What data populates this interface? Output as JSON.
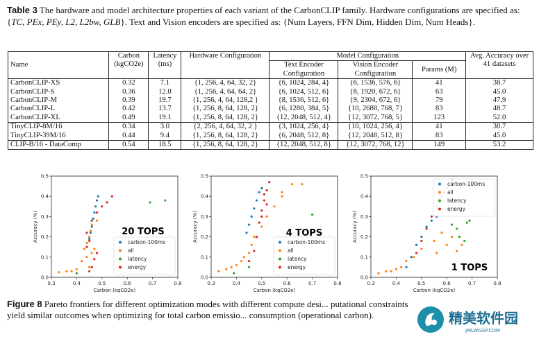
{
  "table_caption": {
    "label": "Table 3",
    "text_a": "The hardware and model architecture properties of each variant of the CarbonCLIP family. Hardware configurations are specified as: {",
    "math": "TC, PEx, PEy, L2, L2bw, GLB",
    "text_b": "}. Text and Vision encoders are specified as: {Num Layers, FFN Dim, Hidden Dim, Num Heads}."
  },
  "table": {
    "headers": {
      "name": "Name",
      "carbon": "Carbon (kgCO2e)",
      "latency": "Latency (ms)",
      "hardware": "Hardware Configuration",
      "model_config": "Model Configuration",
      "text_encoder": "Text Encoder Configuration",
      "vision_encoder": "Vision Encoder Configuration",
      "params": "Params (M)",
      "accuracy": "Avg. Accuracy over 41 datasets"
    },
    "rows": [
      {
        "name": "CarbonCLIP-XS",
        "carbon": "0.32",
        "latency": "7.1",
        "hw": "{1, 256, 4, 64, 32, 2}",
        "text": "{6, 1024, 284, 4}",
        "vision": "{6, 1536, 576, 6}",
        "params": "41",
        "acc": "38.7"
      },
      {
        "name": "CarbonCLIP-S",
        "carbon": "0.36",
        "latency": "12.0",
        "hw": "{1, 256, 4, 64, 64, 2}",
        "text": "{6, 1024, 512, 6}",
        "vision": "{8, 1920, 672, 6}",
        "params": "63",
        "acc": "45.0"
      },
      {
        "name": "CarbonCLIP-M",
        "carbon": "0.39",
        "latency": "19.7",
        "hw": "{1, 256, 4, 64, 128,2 }",
        "text": "{8, 1536, 512, 6}",
        "vision": "{9, 2304, 672, 6}",
        "params": "79",
        "acc": "47.9"
      },
      {
        "name": "CarbonCLIP-L",
        "carbon": "0.42",
        "latency": "13.7",
        "hw": "{1, 256, 8, 64, 128, 2}",
        "text": "{6, 1280, 384, 5}",
        "vision": "{10, 2688, 768, 7}",
        "params": "83",
        "acc": "48.7"
      },
      {
        "name": "CarbonCLIP-XL",
        "carbon": "0.49",
        "latency": "19.1",
        "hw": "{1, 256, 8, 64, 128, 2}",
        "text": "{12, 2048, 512, 4}",
        "vision": "{12, 3072, 768, 5}",
        "params": "123",
        "acc": "52.0"
      },
      {
        "name": "TinyCLIP-8M/16",
        "carbon": "0.34",
        "latency": "3.0",
        "hw": "{2, 256, 4, 64, 32, 2 }",
        "text": "{3, 1024, 256, 4}",
        "vision": "{10, 1024, 256, 4}",
        "params": "41",
        "acc": "30.7"
      },
      {
        "name": "TinyCLIP-39M/16",
        "carbon": "0.44",
        "latency": "9.4",
        "hw": "{1, 256, 8, 64, 128, 2}",
        "text": "{6, 2048, 512, 8}",
        "vision": "{12, 2048, 512, 8}",
        "params": "83",
        "acc": "45.0"
      },
      {
        "name": "CLIP-B/16 - DataComp",
        "carbon": "0.54",
        "latency": "18.5",
        "hw": "{1, 256, 8, 64, 128, 2}",
        "text": "{12, 2048, 512, 8}",
        "vision": "{12, 3072, 768, 12}",
        "params": "149",
        "acc": "53.2"
      }
    ]
  },
  "colors": {
    "carbon-100ms": "#1f77b4",
    "all": "#ff7f0e",
    "latency": "#2ca02c",
    "energy": "#d62728"
  },
  "chart_data": [
    {
      "type": "scatter",
      "annotation": "20 TOPS",
      "xlabel": "Carbon (kgCO2e)",
      "ylabel": "Accuracy (%)",
      "xlim": [
        0.3,
        0.8
      ],
      "ylim": [
        0.0,
        0.5
      ],
      "xticks": [
        "0.3",
        "0.4",
        "0.5",
        "0.6",
        "0.7",
        "0.8"
      ],
      "yticks": [
        "0.0",
        "0.1",
        "0.2",
        "0.3",
        "0.4",
        "0.5"
      ],
      "legend": {
        "position": "lower-right",
        "entries": [
          "carbon-100ms",
          "all",
          "latency",
          "energy"
        ]
      },
      "series": [
        {
          "name": "carbon-100ms",
          "points": [
            [
              0.45,
              0.19
            ],
            [
              0.455,
              0.22
            ],
            [
              0.46,
              0.25
            ],
            [
              0.465,
              0.29
            ],
            [
              0.47,
              0.32
            ],
            [
              0.475,
              0.35
            ],
            [
              0.48,
              0.38
            ],
            [
              0.485,
              0.4
            ]
          ]
        },
        {
          "name": "all",
          "points": [
            [
              0.33,
              0.025
            ],
            [
              0.36,
              0.03
            ],
            [
              0.38,
              0.03
            ],
            [
              0.4,
              0.04
            ],
            [
              0.42,
              0.08
            ],
            [
              0.43,
              0.14
            ],
            [
              0.44,
              0.17
            ],
            [
              0.45,
              0.2
            ],
            [
              0.455,
              0.23
            ],
            [
              0.46,
              0.26
            ],
            [
              0.44,
              0.1
            ],
            [
              0.45,
              0.05
            ],
            [
              0.47,
              0.14
            ],
            [
              0.46,
              0.12
            ],
            [
              0.48,
              0.28
            ]
          ]
        },
        {
          "name": "latency",
          "points": [
            [
              0.69,
              0.37
            ],
            [
              0.75,
              0.38
            ],
            [
              0.4,
              0.02
            ]
          ]
        },
        {
          "name": "energy",
          "points": [
            [
              0.44,
              0.22
            ],
            [
              0.46,
              0.28
            ],
            [
              0.48,
              0.32
            ],
            [
              0.5,
              0.35
            ],
            [
              0.52,
              0.37
            ],
            [
              0.54,
              0.4
            ],
            [
              0.45,
              0.03
            ],
            [
              0.46,
              0.05
            ],
            [
              0.47,
              0.09
            ],
            [
              0.48,
              0.12
            ],
            [
              0.44,
              0.15
            ],
            [
              0.45,
              0.18
            ]
          ]
        }
      ]
    },
    {
      "type": "scatter",
      "annotation": "4 TOPS",
      "xlabel": "Carbon (kgCO2e)",
      "ylabel": "Accuracy (%)",
      "xlim": [
        0.3,
        0.8
      ],
      "ylim": [
        0.0,
        0.5
      ],
      "xticks": [
        "0.3",
        "0.4",
        "0.5",
        "0.6",
        "0.7",
        "0.8"
      ],
      "yticks": [
        "0.0",
        "0.1",
        "0.2",
        "0.3",
        "0.4",
        "0.5"
      ],
      "legend": {
        "position": "lower-right",
        "entries": [
          "carbon-100ms",
          "all",
          "latency",
          "energy"
        ]
      },
      "series": [
        {
          "name": "carbon-100ms",
          "points": [
            [
              0.44,
              0.22
            ],
            [
              0.45,
              0.26
            ],
            [
              0.46,
              0.3
            ],
            [
              0.47,
              0.34
            ],
            [
              0.48,
              0.38
            ],
            [
              0.49,
              0.42
            ],
            [
              0.5,
              0.44
            ]
          ]
        },
        {
          "name": "all",
          "points": [
            [
              0.33,
              0.03
            ],
            [
              0.36,
              0.04
            ],
            [
              0.38,
              0.05
            ],
            [
              0.4,
              0.06
            ],
            [
              0.42,
              0.08
            ],
            [
              0.43,
              0.1
            ],
            [
              0.45,
              0.12
            ],
            [
              0.46,
              0.16
            ],
            [
              0.47,
              0.2
            ],
            [
              0.5,
              0.25
            ],
            [
              0.52,
              0.3
            ],
            [
              0.55,
              0.35
            ],
            [
              0.58,
              0.4
            ],
            [
              0.62,
              0.46
            ],
            [
              0.66,
              0.46
            ],
            [
              0.58,
              0.42
            ]
          ]
        },
        {
          "name": "latency",
          "points": [
            [
              0.39,
              0.02
            ],
            [
              0.45,
              0.05
            ],
            [
              0.7,
              0.31
            ]
          ]
        },
        {
          "name": "energy",
          "points": [
            [
              0.45,
              0.08
            ],
            [
              0.47,
              0.13
            ],
            [
              0.48,
              0.2
            ],
            [
              0.49,
              0.27
            ],
            [
              0.5,
              0.33
            ],
            [
              0.51,
              0.38
            ],
            [
              0.52,
              0.43
            ],
            [
              0.53,
              0.47
            ],
            [
              0.51,
              0.41
            ],
            [
              0.52,
              0.36
            ],
            [
              0.5,
              0.3
            ]
          ]
        }
      ]
    },
    {
      "type": "scatter",
      "annotation": "1 TOPS",
      "xlabel": "Carbon (kgCO2e)",
      "ylabel": "Accuracy (%)",
      "xlim": [
        0.3,
        0.8
      ],
      "ylim": [
        0.0,
        0.5
      ],
      "xticks": [
        "0.3",
        "0.4",
        "0.5",
        "0.6",
        "0.7",
        "0.8"
      ],
      "yticks": [
        "0.0",
        "0.1",
        "0.2",
        "0.3",
        "0.4",
        "0.5"
      ],
      "legend": {
        "position": "upper-right",
        "entries": [
          "carbon-100ms",
          "all",
          "latency",
          "energy"
        ]
      },
      "series": [
        {
          "name": "carbon-100ms",
          "points": [
            [
              0.44,
              0.05
            ],
            [
              0.46,
              0.1
            ],
            [
              0.48,
              0.16
            ],
            [
              0.5,
              0.2
            ],
            [
              0.52,
              0.25
            ],
            [
              0.54,
              0.28
            ],
            [
              0.56,
              0.3
            ]
          ]
        },
        {
          "name": "all",
          "points": [
            [
              0.33,
              0.02
            ],
            [
              0.36,
              0.03
            ],
            [
              0.38,
              0.03
            ],
            [
              0.4,
              0.04
            ],
            [
              0.42,
              0.05
            ],
            [
              0.44,
              0.08
            ],
            [
              0.47,
              0.1
            ],
            [
              0.5,
              0.14
            ],
            [
              0.55,
              0.18
            ],
            [
              0.58,
              0.22
            ],
            [
              0.6,
              0.16
            ],
            [
              0.62,
              0.2
            ],
            [
              0.64,
              0.13
            ],
            [
              0.66,
              0.16
            ],
            [
              0.56,
              0.12
            ]
          ]
        },
        {
          "name": "latency",
          "points": [
            [
              0.62,
              0.26
            ],
            [
              0.65,
              0.2
            ],
            [
              0.68,
              0.27
            ],
            [
              0.69,
              0.28
            ],
            [
              0.64,
              0.24
            ],
            [
              0.67,
              0.18
            ]
          ]
        },
        {
          "name": "energy",
          "points": [
            [
              0.48,
              0.12
            ],
            [
              0.5,
              0.18
            ],
            [
              0.52,
              0.24
            ],
            [
              0.54,
              0.3
            ],
            [
              0.56,
              0.35
            ],
            [
              0.58,
              0.4
            ],
            [
              0.6,
              0.44
            ],
            [
              0.62,
              0.48
            ],
            [
              0.57,
              0.38
            ],
            [
              0.59,
              0.42
            ]
          ]
        }
      ]
    }
  ],
  "figure_caption": {
    "label": "Figure 8",
    "text": "Pareto frontiers for different optimization modes with different compute desi... putational constraints yield similar outcomes when optimizing for total carbon emissio... consumption (operational carbon)."
  },
  "watermark": {
    "cn": "精美软件园",
    "url": "JMLWGSP.COM"
  }
}
